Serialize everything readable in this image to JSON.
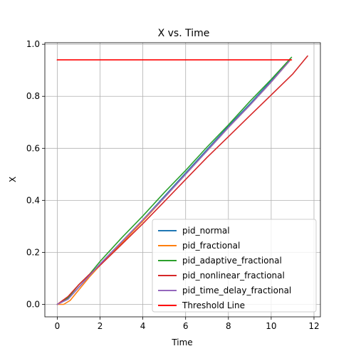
{
  "chart_data": {
    "type": "line",
    "title": "X vs. Time",
    "xlabel": "Time",
    "ylabel": "X",
    "xlim": [
      -0.58,
      12.3
    ],
    "ylim": [
      -0.048,
      1.006
    ],
    "xticks": [
      0,
      2,
      4,
      6,
      8,
      10,
      12
    ],
    "yticks": [
      0.0,
      0.2,
      0.4,
      0.6,
      0.8,
      1.0
    ],
    "xtick_labels": [
      "0",
      "2",
      "4",
      "6",
      "8",
      "10",
      "12"
    ],
    "ytick_labels": [
      "0.0",
      "0.2",
      "0.4",
      "0.6",
      "0.8",
      "1.0"
    ],
    "grid": true,
    "legend_position": "lower-right",
    "series": [
      {
        "name": "pid_normal",
        "color": "#1f77b4",
        "x": [
          0,
          0.5,
          1.0,
          1.5,
          2.0,
          3.0,
          4.0,
          5.0,
          6.0,
          7.0,
          8.0,
          9.0,
          10.0,
          10.9
        ],
        "y": [
          0,
          0.02,
          0.065,
          0.11,
          0.155,
          0.24,
          0.325,
          0.415,
          0.505,
          0.595,
          0.685,
          0.77,
          0.86,
          0.945
        ]
      },
      {
        "name": "pid_fractional",
        "color": "#ff7f0e",
        "x": [
          0,
          0.3,
          0.6,
          1.0,
          1.5,
          2.0,
          3.0,
          4.0,
          5.0,
          6.0,
          7.0,
          8.0,
          9.0,
          10.0,
          10.9
        ],
        "y": [
          0,
          0.0,
          0.015,
          0.055,
          0.105,
          0.15,
          0.235,
          0.32,
          0.41,
          0.5,
          0.59,
          0.68,
          0.765,
          0.855,
          0.94
        ]
      },
      {
        "name": "pid_adaptive_fractional",
        "color": "#2ca02c",
        "x": [
          0,
          0.5,
          1.0,
          1.5,
          2.0,
          3.0,
          4.0,
          5.0,
          6.0,
          7.0,
          8.0,
          9.0,
          10.0,
          10.95
        ],
        "y": [
          0,
          0.025,
          0.075,
          0.115,
          0.165,
          0.255,
          0.34,
          0.43,
          0.515,
          0.605,
          0.69,
          0.78,
          0.865,
          0.95
        ]
      },
      {
        "name": "pid_nonlinear_fractional",
        "color": "#d62728",
        "x": [
          0,
          0.5,
          1.0,
          1.5,
          2.0,
          3.0,
          4.0,
          5.0,
          6.0,
          7.0,
          8.0,
          9.0,
          10.0,
          11.0,
          11.7
        ],
        "y": [
          0,
          0.03,
          0.075,
          0.115,
          0.15,
          0.23,
          0.31,
          0.395,
          0.48,
          0.565,
          0.645,
          0.725,
          0.805,
          0.885,
          0.955
        ]
      },
      {
        "name": "pid_time_delay_fractional",
        "color": "#9467bd",
        "x": [
          0,
          0.5,
          1.0,
          1.5,
          2.0,
          3.0,
          4.0,
          5.0,
          6.0,
          7.0,
          8.0,
          9.0,
          10.0,
          10.85
        ],
        "y": [
          0,
          0.02,
          0.065,
          0.11,
          0.155,
          0.24,
          0.325,
          0.41,
          0.5,
          0.59,
          0.68,
          0.765,
          0.855,
          0.935
        ]
      },
      {
        "name": "Threshold Line",
        "color": "#ff0000",
        "x": [
          0,
          10.95
        ],
        "y": [
          0.94,
          0.94
        ]
      }
    ]
  }
}
